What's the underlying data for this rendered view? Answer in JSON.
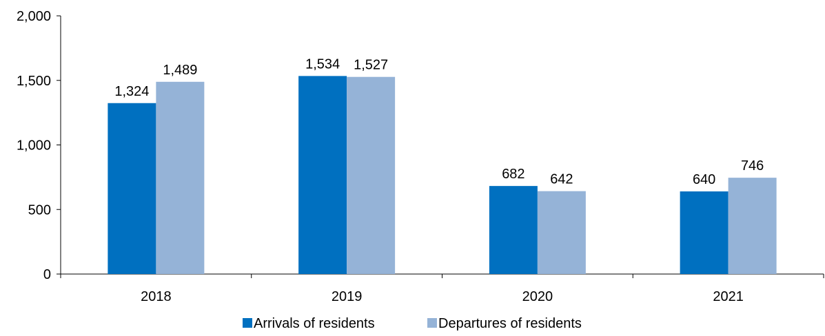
{
  "chart_data": {
    "type": "bar",
    "categories": [
      "2018",
      "2019",
      "2020",
      "2021"
    ],
    "series": [
      {
        "name": "Arrivals of residents",
        "values": [
          1324,
          1534,
          682,
          640
        ],
        "color": "#0070C0",
        "labels": [
          "1,324",
          "1,534",
          "682",
          "640"
        ]
      },
      {
        "name": "Departures of residents",
        "values": [
          1489,
          1527,
          642,
          746
        ],
        "color": "#95B3D7",
        "labels": [
          "1,489",
          "1,527",
          "642",
          "746"
        ]
      }
    ],
    "ylim": [
      0,
      2000
    ],
    "yticks": [
      0,
      500,
      1000,
      1500,
      2000
    ],
    "ytick_labels": [
      "0",
      "500",
      "1,000",
      "1,500",
      "2,000"
    ],
    "grid": false,
    "legend_position": "bottom-center",
    "title": "",
    "xlabel": "",
    "ylabel": ""
  }
}
